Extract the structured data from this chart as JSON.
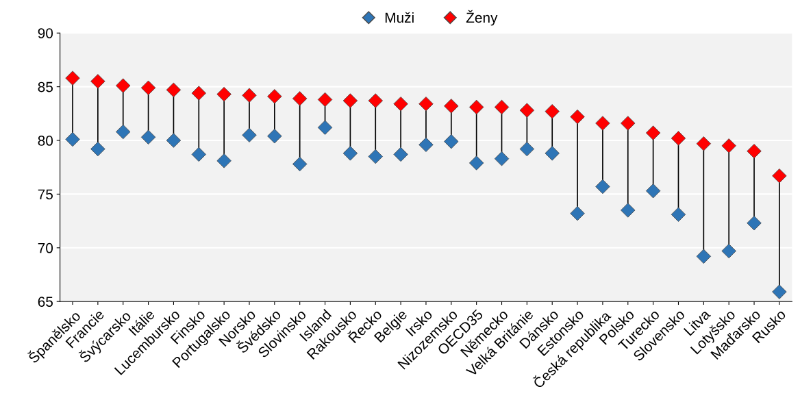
{
  "chart_data": {
    "type": "scatter",
    "categories": [
      "Španělsko",
      "Francie",
      "Švýcarsko",
      "Itálie",
      "Lucembursko",
      "Finsko",
      "Portugalsko",
      "Norsko",
      "Švédsko",
      "Slovinsko",
      "Island",
      "Rakousko",
      "Řecko",
      "Belgie",
      "Irsko",
      "Nizozemsko",
      "OECD35",
      "Německo",
      "Velká Británie",
      "Dánsko",
      "Estonsko",
      "Česká republika",
      "Polsko",
      "Turecko",
      "Slovensko",
      "Litva",
      "Lotyšsko",
      "Maďarsko",
      "Rusko"
    ],
    "series": [
      {
        "name": "Muži",
        "color": "#2e75b6",
        "values": [
          80.1,
          79.2,
          80.8,
          80.3,
          80.0,
          78.7,
          78.1,
          80.5,
          80.4,
          77.8,
          81.2,
          78.8,
          78.5,
          78.7,
          79.6,
          79.9,
          77.9,
          78.3,
          79.2,
          78.8,
          73.2,
          75.7,
          73.5,
          75.3,
          73.1,
          69.2,
          69.7,
          72.3,
          65.9
        ]
      },
      {
        "name": "Ženy",
        "color": "#ff0000",
        "values": [
          85.8,
          85.5,
          85.1,
          84.9,
          84.7,
          84.4,
          84.3,
          84.2,
          84.1,
          83.9,
          83.8,
          83.7,
          83.7,
          83.4,
          83.4,
          83.2,
          83.1,
          83.1,
          82.8,
          82.7,
          82.2,
          81.6,
          81.6,
          80.7,
          80.2,
          79.7,
          79.5,
          79.0,
          76.7
        ]
      }
    ],
    "ylim": [
      65,
      90
    ],
    "yticks": [
      65,
      70,
      75,
      80,
      85,
      90
    ],
    "grid": "y",
    "legend": "top",
    "marker": "diamond"
  }
}
